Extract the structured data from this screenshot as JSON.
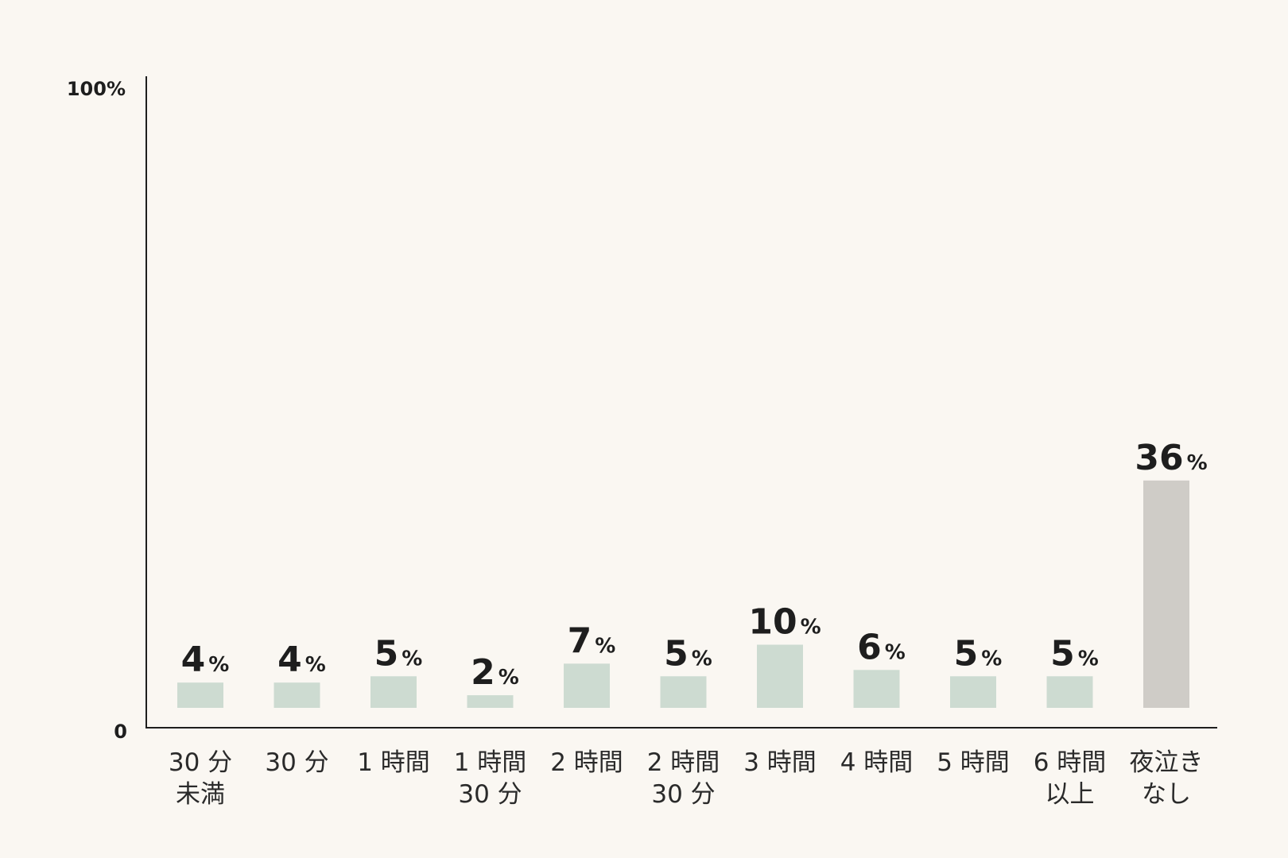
{
  "chart_data": {
    "type": "bar",
    "categories": [
      [
        "30 分",
        "未満"
      ],
      [
        "30 分"
      ],
      [
        "1 時間"
      ],
      [
        "1 時間",
        "30 分"
      ],
      [
        "2 時間"
      ],
      [
        "2 時間",
        "30 分"
      ],
      [
        "3 時間"
      ],
      [
        "4 時間"
      ],
      [
        "5 時間"
      ],
      [
        "6 時間",
        "以上"
      ],
      [
        "夜泣き",
        "なし"
      ]
    ],
    "values": [
      4,
      4,
      5,
      2,
      7,
      5,
      10,
      6,
      5,
      5,
      36
    ],
    "value_suffix": "%",
    "ylim": [
      0,
      100
    ],
    "ytick_labels": {
      "min": "0",
      "max": "100%"
    },
    "colors": {
      "bar": "#cddbd1",
      "bar_highlight": "#cfccc7",
      "axis": "#1e1e1e",
      "background": "#faf7f2"
    },
    "highlight_index": 10
  }
}
